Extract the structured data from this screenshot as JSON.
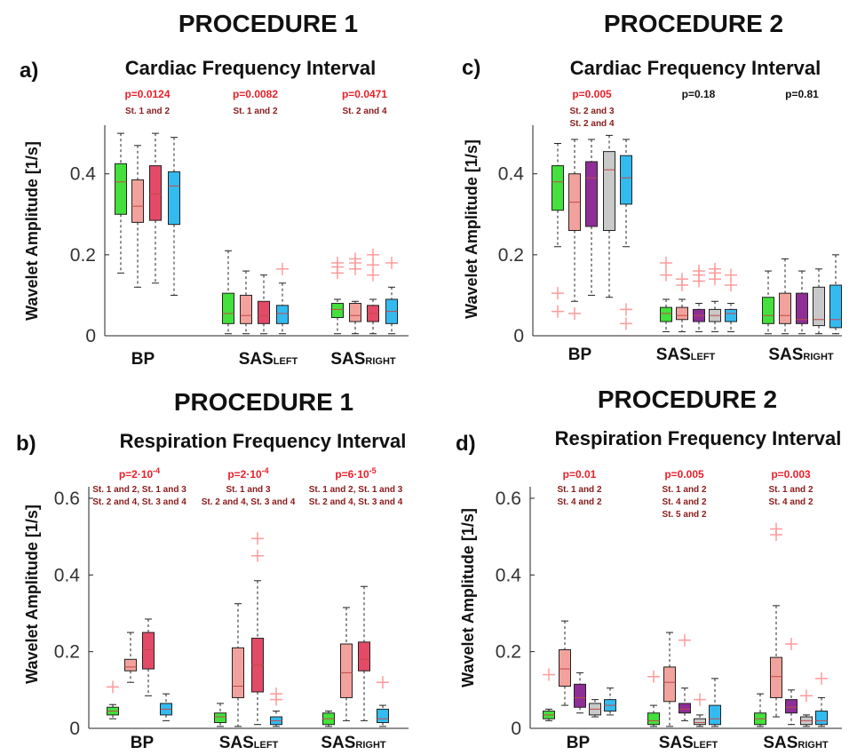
{
  "colors": {
    "stage1": "#44e03c",
    "stage2": "#f2a29c",
    "stage3": "#e34a66",
    "stage3_proc2": "#8e2e96",
    "stage4_proc2": "#c9c9c9",
    "stage4": "#33bbf0",
    "outlier": "#ff9a9a",
    "significant": "#e8202a",
    "nonsignificant": "#111111",
    "annotation": "#8b1a1a"
  },
  "chart_data": [
    {
      "id": "a",
      "type": "box",
      "panel_label": "a)",
      "procedure": "PROCEDURE 1",
      "title": "Cardiac Frequency Interval",
      "ylabel": "Wavelet Amplitude [1/s]",
      "ylim": [
        0,
        0.52
      ],
      "yticks": [
        0,
        0.2,
        0.4
      ],
      "ytick_labels": [
        "0",
        "0.2",
        "0.4"
      ],
      "categories": [
        {
          "name": "BP",
          "sub": ""
        },
        {
          "name": "SAS",
          "sub": "LEFT"
        },
        {
          "name": "SAS",
          "sub": "RIGHT"
        }
      ],
      "series_colors": [
        "#44e03c",
        "#f2a29c",
        "#e34a66",
        "#33bbf0"
      ],
      "groups": [
        {
          "pvalue": "p=0.0124",
          "significant": true,
          "notes": [
            "St. 1 and 2"
          ],
          "boxes": [
            {
              "min": 0.155,
              "q1": 0.3,
              "median": 0.38,
              "q3": 0.425,
              "max": 0.5,
              "outliers": []
            },
            {
              "min": 0.12,
              "q1": 0.28,
              "median": 0.32,
              "q3": 0.385,
              "max": 0.47,
              "outliers": []
            },
            {
              "min": 0.13,
              "q1": 0.285,
              "median": 0.35,
              "q3": 0.42,
              "max": 0.5,
              "outliers": []
            },
            {
              "min": 0.1,
              "q1": 0.275,
              "median": 0.37,
              "q3": 0.405,
              "max": 0.49,
              "outliers": []
            }
          ]
        },
        {
          "pvalue": "p=0.0082",
          "significant": true,
          "notes": [
            "St. 1 and 2"
          ],
          "boxes": [
            {
              "min": 0.005,
              "q1": 0.03,
              "median": 0.055,
              "q3": 0.105,
              "max": 0.21,
              "outliers": []
            },
            {
              "min": 0.005,
              "q1": 0.03,
              "median": 0.05,
              "q3": 0.1,
              "max": 0.16,
              "outliers": []
            },
            {
              "min": 0.005,
              "q1": 0.03,
              "median": 0.05,
              "q3": 0.085,
              "max": 0.15,
              "outliers": []
            },
            {
              "min": 0.005,
              "q1": 0.03,
              "median": 0.055,
              "q3": 0.075,
              "max": 0.13,
              "outliers": [
                0.165
              ]
            }
          ]
        },
        {
          "pvalue": "p=0.0471",
          "significant": true,
          "notes": [
            "St. 2 and 4"
          ],
          "boxes": [
            {
              "min": 0.005,
              "q1": 0.045,
              "median": 0.065,
              "q3": 0.08,
              "max": 0.09,
              "outliers": [
                0.155,
                0.17,
                0.18
              ]
            },
            {
              "min": 0.005,
              "q1": 0.035,
              "median": 0.05,
              "q3": 0.08,
              "max": 0.085,
              "outliers": [
                0.165,
                0.18,
                0.19
              ]
            },
            {
              "min": 0.005,
              "q1": 0.035,
              "median": 0.055,
              "q3": 0.075,
              "max": 0.09,
              "outliers": [
                0.15,
                0.175,
                0.2
              ]
            },
            {
              "min": 0.005,
              "q1": 0.03,
              "median": 0.06,
              "q3": 0.09,
              "max": 0.12,
              "outliers": [
                0.18
              ]
            }
          ]
        }
      ]
    },
    {
      "id": "c",
      "type": "box",
      "panel_label": "c)",
      "procedure": "PROCEDURE 2",
      "title": "Cardiac Frequency Interval",
      "ylabel": "Wavelet Amplitude [1/s]",
      "ylim": [
        0,
        0.52
      ],
      "yticks": [
        0,
        0.2,
        0.4
      ],
      "ytick_labels": [
        "0",
        "0.2",
        "0.4"
      ],
      "categories": [
        {
          "name": "BP",
          "sub": ""
        },
        {
          "name": "SAS",
          "sub": "LEFT"
        },
        {
          "name": "SAS",
          "sub": "RIGHT"
        }
      ],
      "series_colors": [
        "#44e03c",
        "#f2a29c",
        "#8e2e96",
        "#c9c9c9",
        "#33bbf0"
      ],
      "groups": [
        {
          "pvalue": "p=0.005",
          "significant": true,
          "notes": [
            "St. 2 and 3",
            "St. 2 and 4"
          ],
          "boxes": [
            {
              "min": 0.22,
              "q1": 0.31,
              "median": 0.38,
              "q3": 0.42,
              "max": 0.475,
              "outliers": [
                0.06,
                0.105
              ]
            },
            {
              "min": 0.085,
              "q1": 0.26,
              "median": 0.33,
              "q3": 0.4,
              "max": 0.485,
              "outliers": [
                0.055
              ]
            },
            {
              "min": 0.1,
              "q1": 0.27,
              "median": 0.39,
              "q3": 0.43,
              "max": 0.485,
              "outliers": []
            },
            {
              "min": 0.095,
              "q1": 0.26,
              "median": 0.41,
              "q3": 0.455,
              "max": 0.495,
              "outliers": []
            },
            {
              "min": 0.22,
              "q1": 0.325,
              "median": 0.39,
              "q3": 0.445,
              "max": 0.485,
              "outliers": [
                0.03,
                0.065
              ]
            }
          ]
        },
        {
          "pvalue": "p=0.18",
          "significant": false,
          "notes": [],
          "boxes": [
            {
              "min": 0.01,
              "q1": 0.035,
              "median": 0.055,
              "q3": 0.07,
              "max": 0.09,
              "outliers": [
                0.15,
                0.18
              ]
            },
            {
              "min": 0.01,
              "q1": 0.04,
              "median": 0.05,
              "q3": 0.07,
              "max": 0.09,
              "outliers": [
                0.125,
                0.14
              ]
            },
            {
              "min": 0.01,
              "q1": 0.035,
              "median": 0.05,
              "q3": 0.065,
              "max": 0.08,
              "outliers": [
                0.135,
                0.15,
                0.16
              ]
            },
            {
              "min": 0.01,
              "q1": 0.035,
              "median": 0.05,
              "q3": 0.065,
              "max": 0.085,
              "outliers": [
                0.14,
                0.155,
                0.165
              ]
            },
            {
              "min": 0.01,
              "q1": 0.035,
              "median": 0.055,
              "q3": 0.065,
              "max": 0.08,
              "outliers": [
                0.125,
                0.15
              ]
            }
          ]
        },
        {
          "pvalue": "p=0.81",
          "significant": false,
          "notes": [],
          "boxes": [
            {
              "min": 0.005,
              "q1": 0.03,
              "median": 0.05,
              "q3": 0.095,
              "max": 0.16,
              "outliers": []
            },
            {
              "min": 0.005,
              "q1": 0.03,
              "median": 0.05,
              "q3": 0.105,
              "max": 0.19,
              "outliers": []
            },
            {
              "min": 0.005,
              "q1": 0.03,
              "median": 0.04,
              "q3": 0.105,
              "max": 0.16,
              "outliers": []
            },
            {
              "min": 0.005,
              "q1": 0.025,
              "median": 0.04,
              "q3": 0.12,
              "max": 0.165,
              "outliers": []
            },
            {
              "min": 0.005,
              "q1": 0.02,
              "median": 0.04,
              "q3": 0.125,
              "max": 0.2,
              "outliers": []
            }
          ]
        }
      ]
    },
    {
      "id": "b",
      "type": "box",
      "panel_label": "b)",
      "procedure": "PROCEDURE 1",
      "title": "Respiration Frequency Interval",
      "ylabel": "Wavelet Amplitude [1/s]",
      "ylim": [
        0,
        0.63
      ],
      "yticks": [
        0,
        0.2,
        0.4,
        0.6
      ],
      "ytick_labels": [
        "0",
        "0.2",
        "0.4",
        "0.6"
      ],
      "categories": [
        {
          "name": "BP",
          "sub": ""
        },
        {
          "name": "SAS",
          "sub": "LEFT"
        },
        {
          "name": "SAS",
          "sub": "RIGHT"
        }
      ],
      "series_colors": [
        "#44e03c",
        "#f2a29c",
        "#e34a66",
        "#33bbf0"
      ],
      "groups": [
        {
          "pvalue": "p=2·10",
          "pvalue_exp": "-4",
          "significant": true,
          "notes": [
            "St. 1 and 2, St. 1 and 3",
            "St. 2 and 4, St. 3 and 4"
          ],
          "boxes": [
            {
              "min": 0.025,
              "q1": 0.035,
              "median": 0.045,
              "q3": 0.055,
              "max": 0.062,
              "outliers": [
                0.108
              ]
            },
            {
              "min": 0.12,
              "q1": 0.15,
              "median": 0.16,
              "q3": 0.18,
              "max": 0.25,
              "outliers": []
            },
            {
              "min": 0.085,
              "q1": 0.155,
              "median": 0.205,
              "q3": 0.25,
              "max": 0.285,
              "outliers": []
            },
            {
              "min": 0.02,
              "q1": 0.035,
              "median": 0.05,
              "q3": 0.065,
              "max": 0.09,
              "outliers": []
            }
          ]
        },
        {
          "pvalue": "p=2·10",
          "pvalue_exp": "-4",
          "significant": true,
          "notes": [
            "St. 1 and 3",
            "St. 2 and 4, St. 3 and 4"
          ],
          "boxes": [
            {
              "min": 0.005,
              "q1": 0.015,
              "median": 0.03,
              "q3": 0.04,
              "max": 0.065,
              "outliers": []
            },
            {
              "min": 0.005,
              "q1": 0.08,
              "median": 0.11,
              "q3": 0.21,
              "max": 0.325,
              "outliers": []
            },
            {
              "min": 0.01,
              "q1": 0.095,
              "median": 0.165,
              "q3": 0.235,
              "max": 0.385,
              "outliers": [
                0.45,
                0.495
              ]
            },
            {
              "min": 0.005,
              "q1": 0.01,
              "median": 0.02,
              "q3": 0.03,
              "max": 0.045,
              "outliers": [
                0.075,
                0.09
              ]
            }
          ]
        },
        {
          "pvalue": "p=6·10",
          "pvalue_exp": "-5",
          "significant": true,
          "notes": [
            "St. 1 and 2, St. 1 and 3",
            "St. 2 and 4, St. 3 and 4"
          ],
          "boxes": [
            {
              "min": 0.005,
              "q1": 0.01,
              "median": 0.025,
              "q3": 0.04,
              "max": 0.045,
              "outliers": []
            },
            {
              "min": 0.02,
              "q1": 0.08,
              "median": 0.145,
              "q3": 0.22,
              "max": 0.315,
              "outliers": []
            },
            {
              "min": 0.02,
              "q1": 0.15,
              "median": 0.18,
              "q3": 0.225,
              "max": 0.37,
              "outliers": []
            },
            {
              "min": 0.005,
              "q1": 0.015,
              "median": 0.025,
              "q3": 0.05,
              "max": 0.06,
              "outliers": [
                0.12
              ]
            }
          ]
        }
      ]
    },
    {
      "id": "d",
      "type": "box",
      "panel_label": "d)",
      "procedure": "PROCEDURE 2",
      "title": "Respiration Frequency Interval",
      "ylabel": "Wavelet Amplitude [1/s]",
      "ylim": [
        0,
        0.63
      ],
      "yticks": [
        0,
        0.2,
        0.4,
        0.6
      ],
      "ytick_labels": [
        "0",
        "0.2",
        "0.4",
        "0.6"
      ],
      "categories": [
        {
          "name": "BP",
          "sub": ""
        },
        {
          "name": "SAS",
          "sub": "LEFT"
        },
        {
          "name": "SAS",
          "sub": "RIGHT"
        }
      ],
      "series_colors": [
        "#44e03c",
        "#f2a29c",
        "#8e2e96",
        "#c9c9c9",
        "#33bbf0"
      ],
      "groups": [
        {
          "pvalue": "p=0.01",
          "significant": true,
          "notes": [
            "St. 1 and 2",
            "St. 4 and 2"
          ],
          "boxes": [
            {
              "min": 0.02,
              "q1": 0.025,
              "median": 0.035,
              "q3": 0.045,
              "max": 0.05,
              "outliers": [
                0.14
              ]
            },
            {
              "min": 0.06,
              "q1": 0.11,
              "median": 0.155,
              "q3": 0.205,
              "max": 0.28,
              "outliers": []
            },
            {
              "min": 0.04,
              "q1": 0.055,
              "median": 0.08,
              "q3": 0.115,
              "max": 0.145,
              "outliers": []
            },
            {
              "min": 0.03,
              "q1": 0.035,
              "median": 0.05,
              "q3": 0.065,
              "max": 0.075,
              "outliers": []
            },
            {
              "min": 0.035,
              "q1": 0.045,
              "median": 0.06,
              "q3": 0.075,
              "max": 0.105,
              "outliers": []
            }
          ]
        },
        {
          "pvalue": "p=0.005",
          "significant": true,
          "notes": [
            "St. 1 and 2",
            "St. 4 and 2",
            "St. 5 and 2"
          ],
          "boxes": [
            {
              "min": 0.005,
              "q1": 0.01,
              "median": 0.02,
              "q3": 0.04,
              "max": 0.06,
              "outliers": [
                0.135
              ]
            },
            {
              "min": 0.005,
              "q1": 0.07,
              "median": 0.12,
              "q3": 0.16,
              "max": 0.25,
              "outliers": []
            },
            {
              "min": 0.02,
              "q1": 0.04,
              "median": 0.05,
              "q3": 0.065,
              "max": 0.105,
              "outliers": [
                0.23
              ]
            },
            {
              "min": 0.005,
              "q1": 0.01,
              "median": 0.015,
              "q3": 0.025,
              "max": 0.035,
              "outliers": [
                0.075
              ]
            },
            {
              "min": 0.005,
              "q1": 0.01,
              "median": 0.025,
              "q3": 0.06,
              "max": 0.13,
              "outliers": []
            }
          ]
        },
        {
          "pvalue": "p=0.003",
          "significant": true,
          "notes": [
            "St. 1 and 2",
            "St. 4 and 2"
          ],
          "boxes": [
            {
              "min": 0.005,
              "q1": 0.01,
              "median": 0.025,
              "q3": 0.04,
              "max": 0.09,
              "outliers": []
            },
            {
              "min": 0.03,
              "q1": 0.08,
              "median": 0.135,
              "q3": 0.185,
              "max": 0.32,
              "outliers": [
                0.505,
                0.52
              ]
            },
            {
              "min": 0.01,
              "q1": 0.04,
              "median": 0.055,
              "q3": 0.075,
              "max": 0.1,
              "outliers": [
                0.22
              ]
            },
            {
              "min": 0.005,
              "q1": 0.01,
              "median": 0.02,
              "q3": 0.03,
              "max": 0.035,
              "outliers": [
                0.085
              ]
            },
            {
              "min": 0.005,
              "q1": 0.01,
              "median": 0.02,
              "q3": 0.045,
              "max": 0.08,
              "outliers": [
                0.13
              ]
            }
          ]
        }
      ]
    }
  ]
}
